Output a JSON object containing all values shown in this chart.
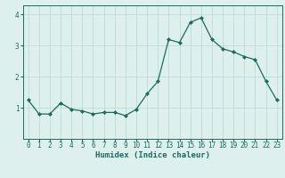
{
  "x": [
    0,
    1,
    2,
    3,
    4,
    5,
    6,
    7,
    8,
    9,
    10,
    11,
    12,
    13,
    14,
    15,
    16,
    17,
    18,
    19,
    20,
    21,
    22,
    23
  ],
  "y": [
    1.25,
    0.8,
    0.8,
    1.15,
    0.95,
    0.9,
    0.8,
    0.85,
    0.85,
    0.75,
    0.95,
    1.45,
    1.85,
    3.2,
    3.1,
    3.75,
    3.9,
    3.2,
    2.9,
    2.8,
    2.65,
    2.55,
    1.85,
    1.25
  ],
  "xlabel": "Humidex (Indice chaleur)",
  "ylim": [
    0,
    4.3
  ],
  "xlim": [
    -0.5,
    23.5
  ],
  "yticks": [
    1,
    2,
    3,
    4
  ],
  "xticks": [
    0,
    1,
    2,
    3,
    4,
    5,
    6,
    7,
    8,
    9,
    10,
    11,
    12,
    13,
    14,
    15,
    16,
    17,
    18,
    19,
    20,
    21,
    22,
    23
  ],
  "line_color": "#1a6b60",
  "marker_color": "#1a6b60",
  "bg_color": "#ddf0ee",
  "grid_color": "#b8d8d4",
  "axis_color": "#1a6b60",
  "label_fontsize": 6.0,
  "tick_fontsize": 5.5,
  "xlabel_fontsize": 6.5
}
